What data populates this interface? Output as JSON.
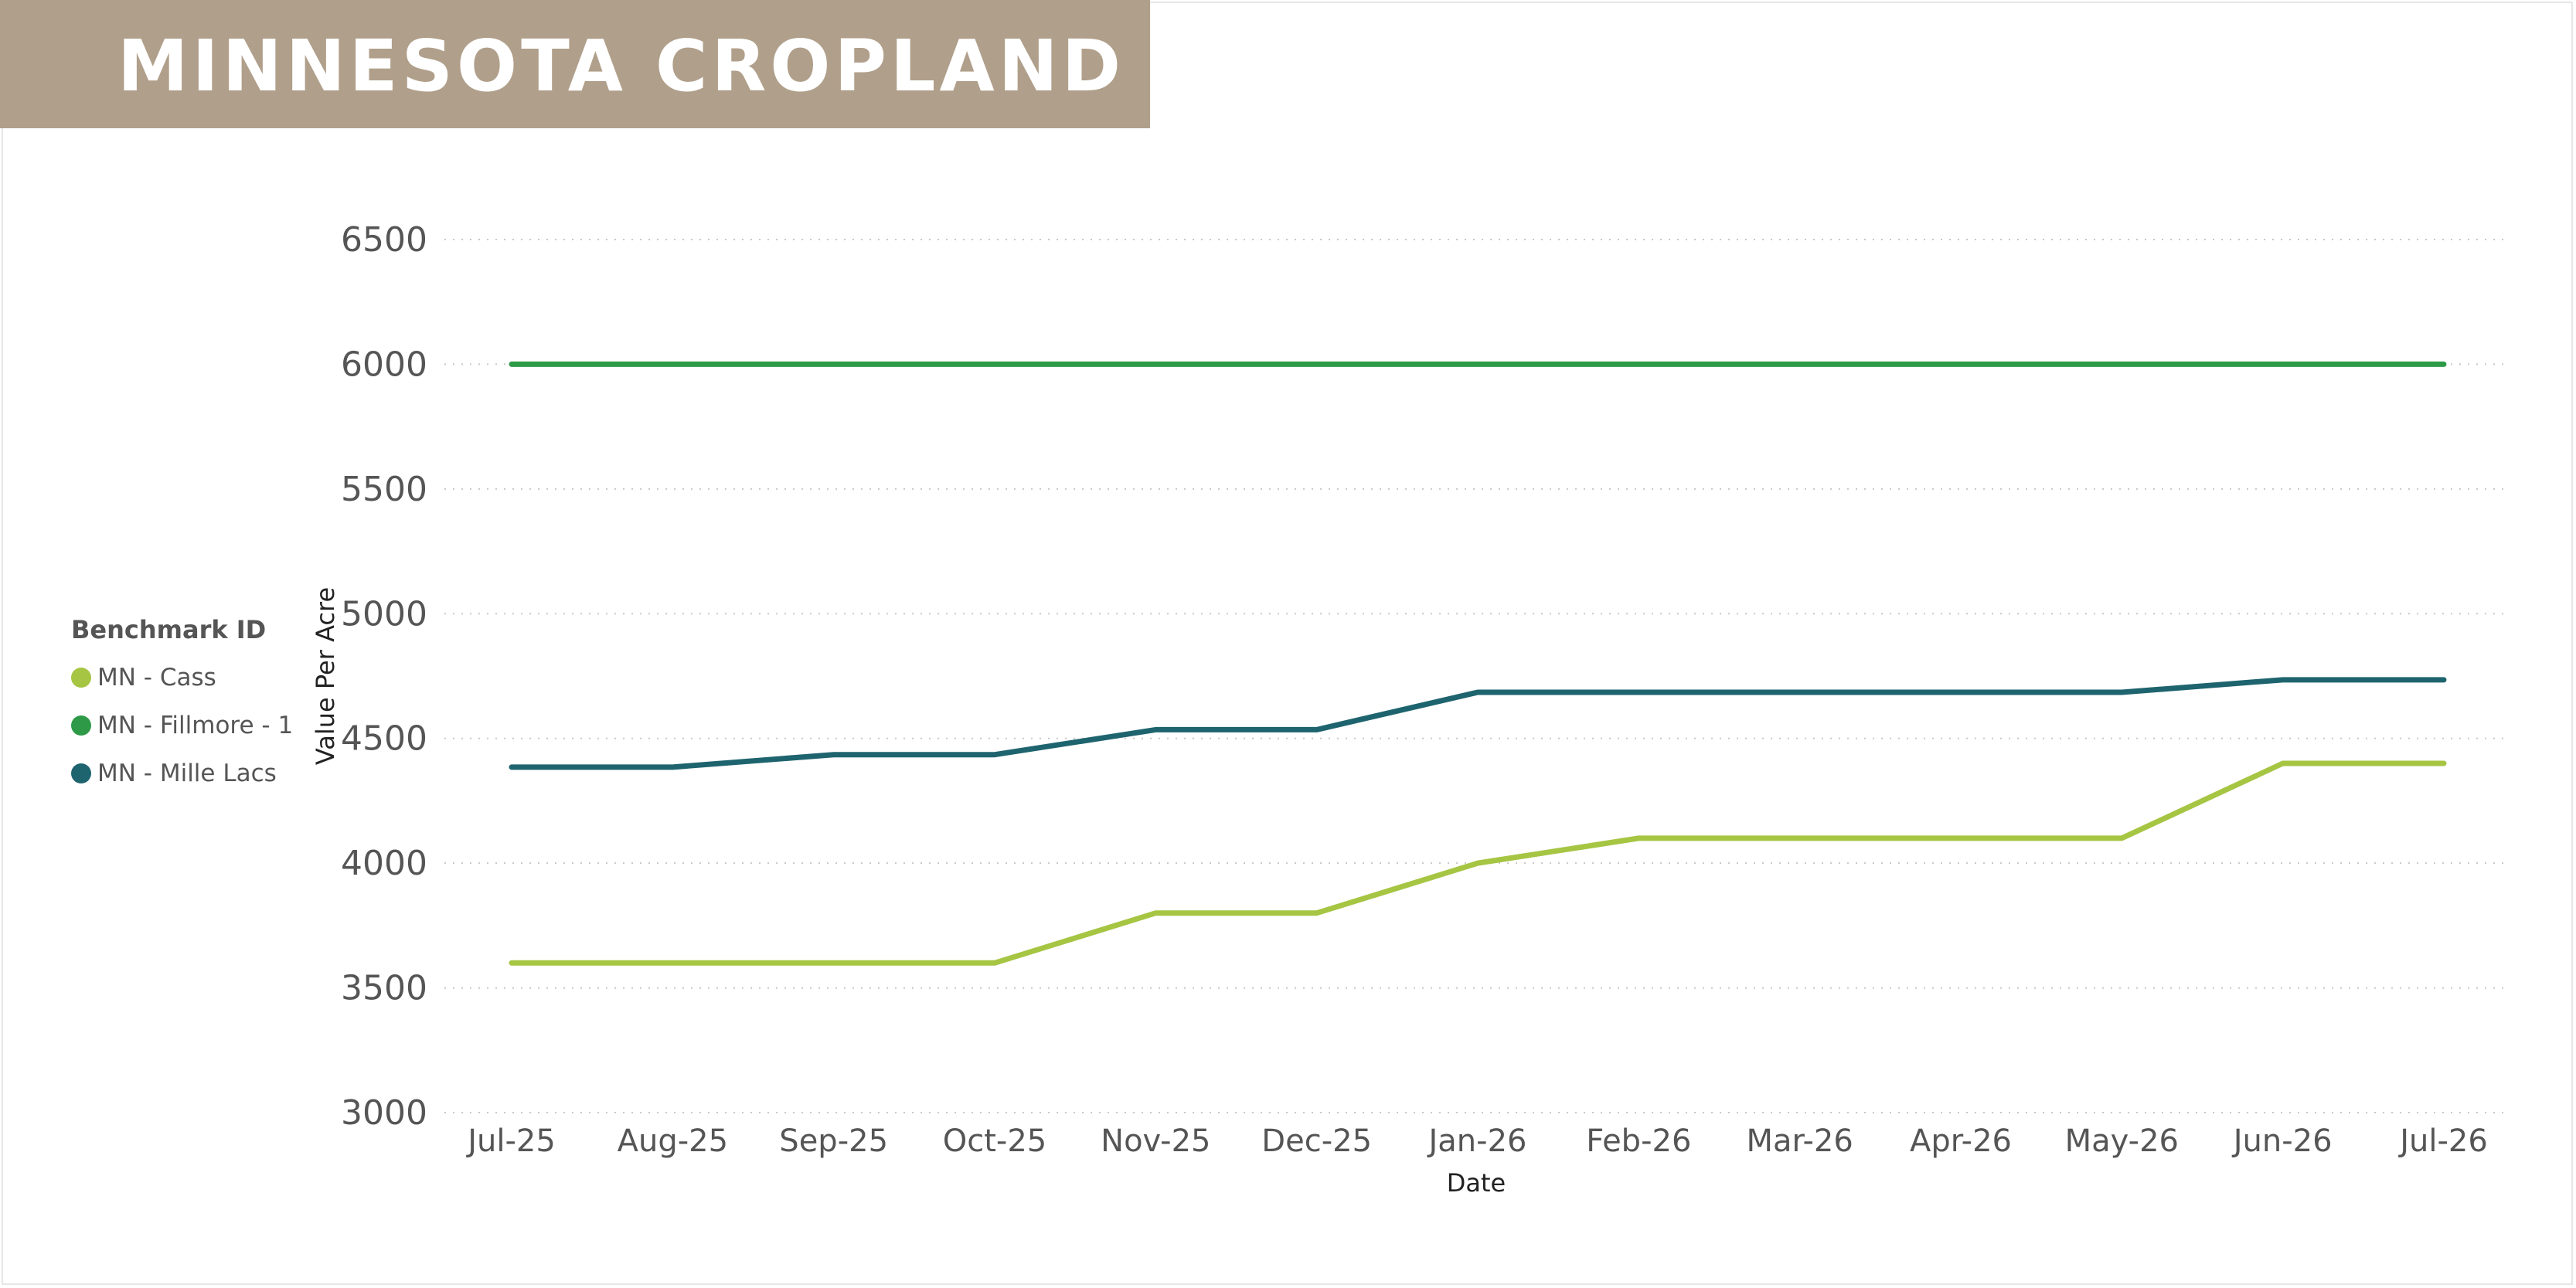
{
  "header": {
    "title": "MINNESOTA CROPLAND D"
  },
  "legend": {
    "title": "Benchmark ID",
    "items": [
      {
        "label": "MN - Cass",
        "color": "#a6c543"
      },
      {
        "label": "MN - Fillmore - 1",
        "color": "#2e9a48"
      },
      {
        "label": "MN - Mille Lacs",
        "color": "#1e646e"
      }
    ]
  },
  "chart_data": {
    "type": "line",
    "title": "MINNESOTA CROPLAND D",
    "xlabel": "Date",
    "ylabel": "Value Per Acre",
    "categories": [
      "Jul-25",
      "Aug-25",
      "Sep-25",
      "Oct-25",
      "Nov-25",
      "Dec-25",
      "Jan-26",
      "Feb-26",
      "Mar-26",
      "Apr-26",
      "May-26",
      "Jun-26",
      "Jul-26"
    ],
    "ylim": [
      3000,
      6500
    ],
    "yticks": [
      3000,
      3500,
      4000,
      4500,
      5000,
      5500,
      6000,
      6500
    ],
    "grid": "horizontal-dotted",
    "legend_position": "left",
    "series": [
      {
        "name": "MN - Cass",
        "color": "#a6c543",
        "values": [
          3600,
          3600,
          3600,
          3600,
          3800,
          3800,
          4000,
          4100,
          4100,
          4100,
          4100,
          4400,
          4400
        ]
      },
      {
        "name": "MN - Fillmore - 1",
        "color": "#2e9a48",
        "values": [
          6000,
          6000,
          6000,
          6000,
          6000,
          6000,
          6000,
          6000,
          6000,
          6000,
          6000,
          6000,
          6000
        ]
      },
      {
        "name": "MN - Mille Lacs",
        "color": "#1e646e",
        "values": [
          4385,
          4385,
          4435,
          4435,
          4535,
          4535,
          4685,
          4685,
          4685,
          4685,
          4685,
          4735,
          4735
        ]
      }
    ]
  }
}
